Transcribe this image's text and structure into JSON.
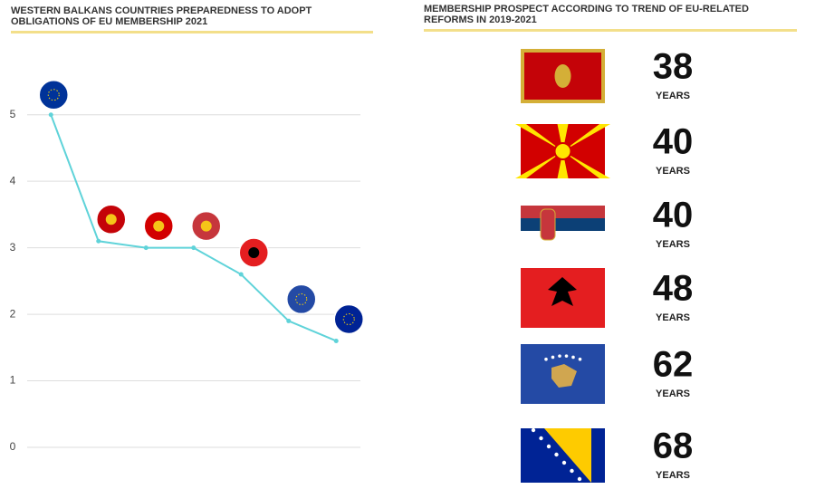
{
  "chart_data": {
    "type": "line",
    "title": "WESTERN BALKANS COUNTRIES PREPAREDNESS TO ADOPT OBLIGATIONS OF EU MEMBERSHIP 2021",
    "categories": [
      null,
      null,
      null,
      null,
      null,
      null,
      null
    ],
    "values": [
      5,
      3.1,
      3.0,
      3.0,
      2.6,
      1.9,
      1.6
    ],
    "color": "#5fd3d9",
    "point_colors": [
      "#003399",
      "#c40308",
      "#d20000",
      "#c6363c",
      "#e41e20",
      "#244aa5",
      "#002395"
    ],
    "ylim": [
      0,
      5.5
    ],
    "yticks": [
      0,
      1,
      2,
      3,
      4,
      5
    ],
    "grid": true
  },
  "prospect": {
    "title": "MEMBERSHIP PROSPECT ACCORDING TO TREND OF EU-RELATED REFORMS IN 2019-2021",
    "unit": "YEARS",
    "values": [
      38,
      40,
      40,
      48,
      62,
      68
    ]
  }
}
